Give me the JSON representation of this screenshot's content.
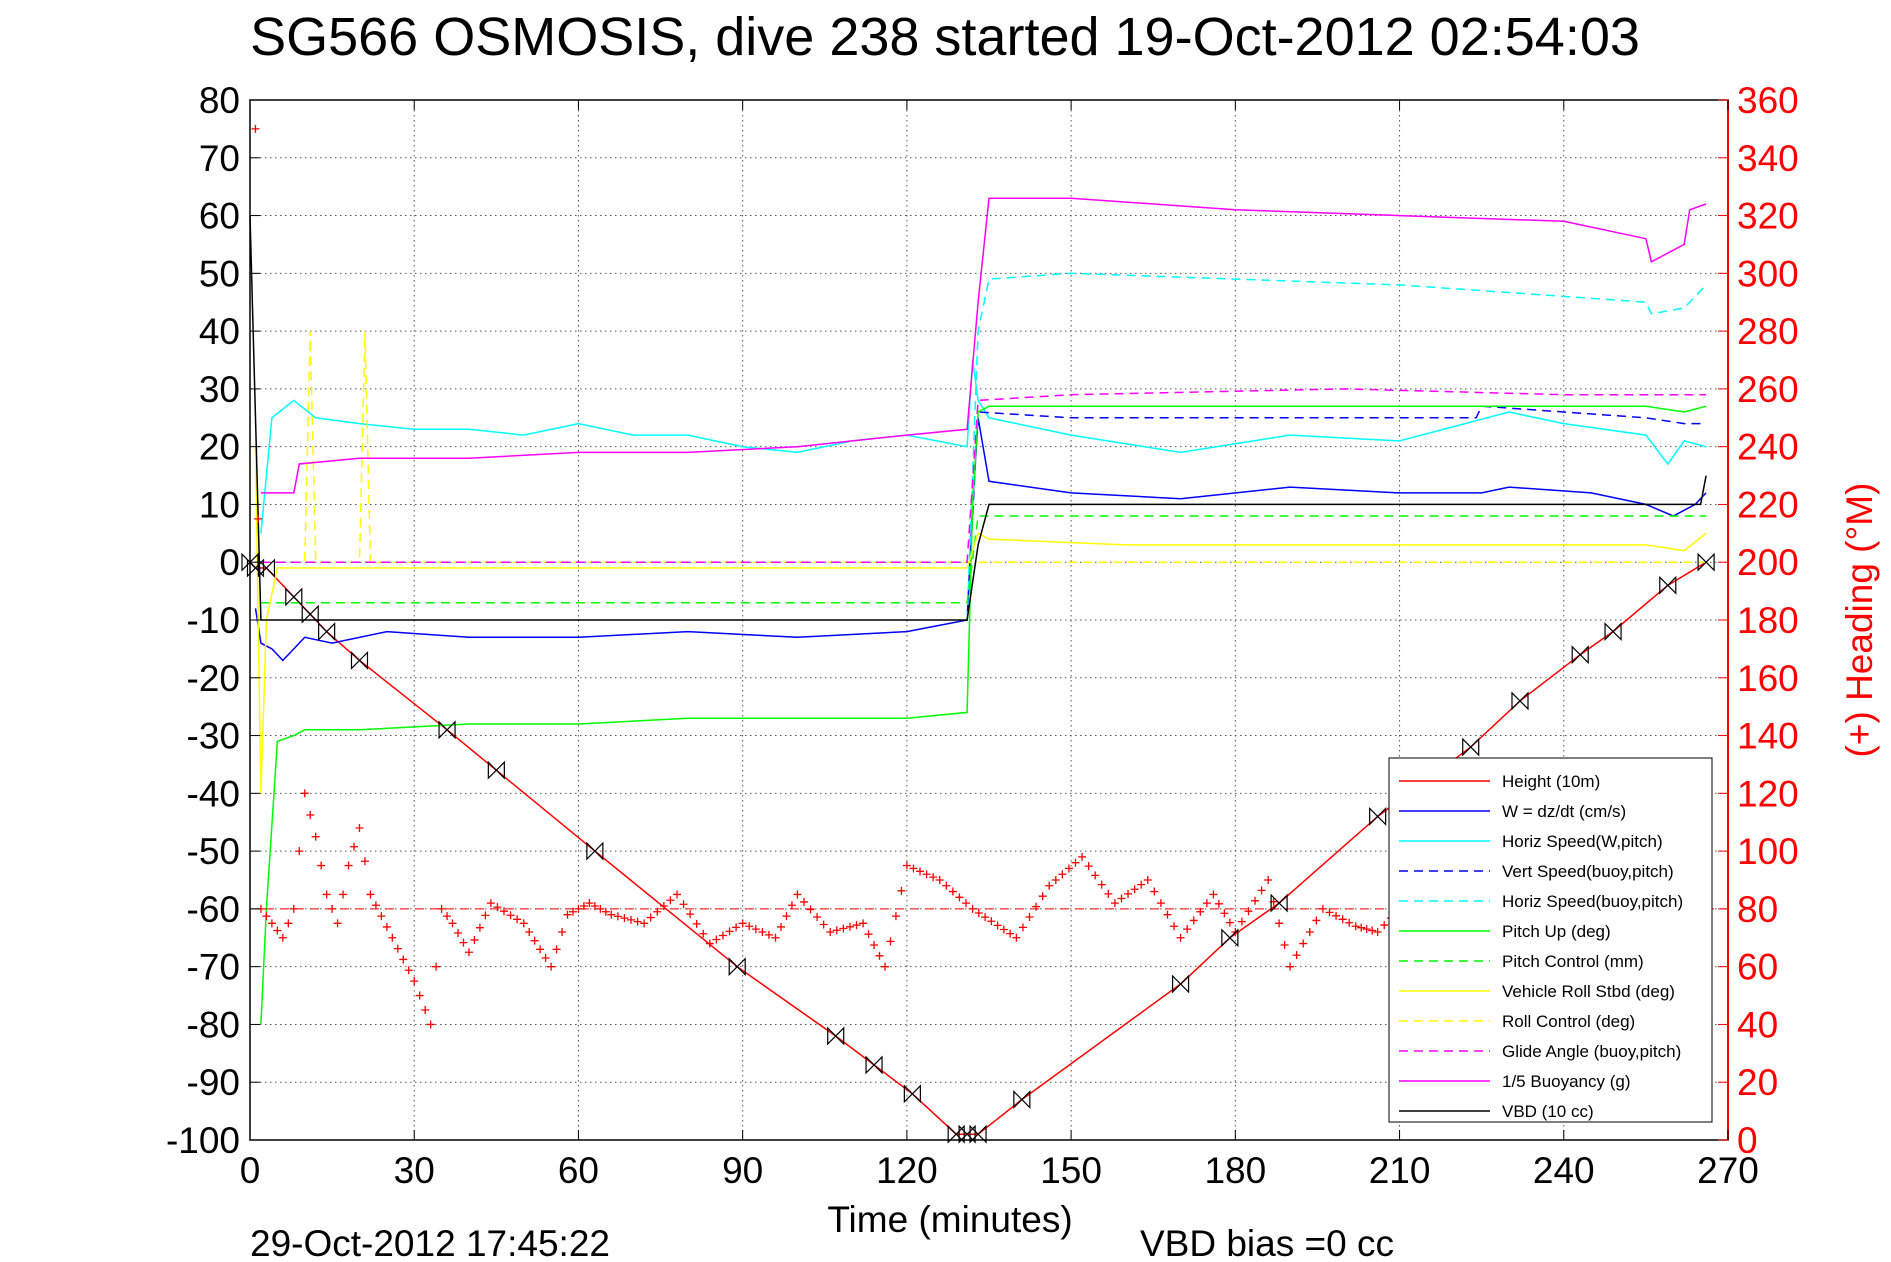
{
  "chart_data": {
    "type": "line",
    "title": "SG566 OSMOSIS, dive 238 started 19-Oct-2012 02:54:03",
    "xlabel": "Time (minutes)",
    "ylabel": "",
    "y2label": "(+) Heading (°M)",
    "xlim": [
      0,
      270
    ],
    "ylim": [
      -100,
      80
    ],
    "y2lim": [
      0,
      360
    ],
    "grid": true,
    "legend_position": "bottom-right",
    "x_ticks": [
      "0",
      "30",
      "60",
      "90",
      "120",
      "150",
      "180",
      "210",
      "240",
      "270"
    ],
    "y_ticks": [
      "80",
      "70",
      "60",
      "50",
      "40",
      "30",
      "20",
      "10",
      "0",
      "-10",
      "-20",
      "-30",
      "-40",
      "-50",
      "-60",
      "-70",
      "-80",
      "-90",
      "-100"
    ],
    "y2_ticks": [
      "360",
      "340",
      "320",
      "300",
      "280",
      "260",
      "240",
      "220",
      "200",
      "180",
      "160",
      "140",
      "120",
      "100",
      "80",
      "60",
      "40",
      "20",
      "0"
    ],
    "footer_date": "29-Oct-2012 17:45:22",
    "footer_vbd": "VBD bias =0 cc",
    "colors": {
      "height": "#ff0000",
      "w": "#0000ff",
      "horiz_speed": "#00ffff",
      "vert_speed_buoy": "#0000ff",
      "horiz_speed_buoy": "#00ffff",
      "pitch": "#00ff00",
      "pitch_control": "#00ff00",
      "roll": "#ffff00",
      "roll_control": "#ffff00",
      "glide_angle": "#ff00ff",
      "buoyancy": "#ff00ff",
      "vbd": "#000000",
      "heading": "#ff0000",
      "grid": "#555555"
    },
    "series": [
      {
        "id": "height",
        "name": "Height (10m)",
        "style": "solid",
        "color": "#ff0000",
        "marker": "bowtie",
        "x": [
          0,
          1,
          3,
          8,
          11,
          14,
          20,
          36,
          45,
          63,
          89,
          107,
          114,
          121,
          129,
          131,
          133,
          141,
          170,
          179,
          188,
          206,
          223,
          232,
          243,
          249,
          259,
          266
        ],
        "y": [
          0,
          -1,
          -1,
          -6,
          -9,
          -12,
          -17,
          -29,
          -36,
          -50,
          -70,
          -82,
          -87,
          -92,
          -99,
          -99,
          -99,
          -93,
          -73,
          -65,
          -59,
          -44,
          -32,
          -24,
          -16,
          -12,
          -4,
          0
        ]
      },
      {
        "id": "w",
        "name": "W = dz/dt (cm/s)",
        "style": "solid",
        "color": "#0000ff",
        "x": [
          1,
          2,
          4,
          6,
          8,
          10,
          15,
          25,
          40,
          60,
          80,
          100,
          120,
          131,
          132,
          133,
          135,
          150,
          170,
          190,
          210,
          225,
          230,
          245,
          255,
          260,
          264,
          266
        ],
        "y": [
          -8,
          -14,
          -15,
          -17,
          -15,
          -13,
          -14,
          -12,
          -13,
          -13,
          -12,
          -13,
          -12,
          -10,
          10,
          25,
          14,
          12,
          11,
          13,
          12,
          12,
          13,
          12,
          10,
          8,
          10,
          12
        ]
      },
      {
        "id": "horiz_speed",
        "name": "Horiz Speed(W,pitch)",
        "style": "solid",
        "color": "#00ffff",
        "x": [
          2,
          4,
          8,
          12,
          20,
          30,
          40,
          50,
          60,
          70,
          80,
          90,
          100,
          110,
          120,
          131,
          132,
          133,
          135,
          150,
          170,
          190,
          210,
          230,
          240,
          255,
          259,
          262,
          266
        ],
        "y": [
          5,
          25,
          28,
          25,
          24,
          23,
          23,
          22,
          24,
          22,
          22,
          20,
          19,
          21,
          22,
          20,
          35,
          28,
          25,
          22,
          19,
          22,
          21,
          26,
          24,
          22,
          17,
          21,
          20
        ]
      },
      {
        "id": "vert_speed_buoy",
        "name": "Vert Speed(buoy,pitch)",
        "style": "dashed",
        "color": "#0000ff",
        "x": [
          131,
          133,
          150,
          200,
          224,
          225,
          240,
          255,
          262,
          265
        ],
        "y": [
          -10,
          26,
          25,
          25,
          25,
          27,
          26,
          25,
          24,
          24
        ]
      },
      {
        "id": "horiz_speed_buoy",
        "name": "Horiz Speed(buoy,pitch)",
        "style": "dashed",
        "color": "#00ffff",
        "x": [
          131,
          133,
          135,
          150,
          180,
          210,
          240,
          255,
          256,
          262,
          266
        ],
        "y": [
          -10,
          40,
          49,
          50,
          49,
          48,
          46,
          45,
          43,
          44,
          48
        ]
      },
      {
        "id": "pitch",
        "name": "Pitch Up (deg)",
        "style": "solid",
        "color": "#00ff00",
        "x": [
          2,
          3,
          5,
          8,
          10,
          20,
          40,
          60,
          80,
          100,
          120,
          131,
          132,
          133,
          135,
          150,
          180,
          210,
          240,
          255,
          262,
          266
        ],
        "y": [
          -80,
          -60,
          -31,
          -30,
          -29,
          -29,
          -28,
          -28,
          -27,
          -27,
          -27,
          -26,
          10,
          26,
          27,
          27,
          27,
          27,
          27,
          27,
          26,
          27
        ]
      },
      {
        "id": "pitch_control",
        "name": "Pitch Control (mm)",
        "style": "dashed",
        "color": "#00ff00",
        "x": [
          2,
          5,
          131,
          133,
          266
        ],
        "y": [
          -7,
          -7,
          -7,
          8,
          8
        ]
      },
      {
        "id": "roll",
        "name": "Vehicle Roll Stbd (deg)",
        "style": "solid",
        "color": "#ffff00",
        "x": [
          1,
          2,
          3,
          5,
          10,
          30,
          60,
          90,
          120,
          131,
          133,
          135,
          160,
          190,
          220,
          255,
          262,
          266
        ],
        "y": [
          20,
          -40,
          -10,
          -1,
          -1,
          -1,
          -1,
          -1,
          -1,
          -1,
          5,
          4,
          3,
          3,
          3,
          3,
          2,
          5
        ]
      },
      {
        "id": "roll_control",
        "name": "Roll Control (deg)",
        "style": "dashed",
        "color": "#ffff00",
        "x": [
          2,
          10,
          11,
          12,
          20,
          21,
          22,
          60,
          120,
          131,
          133,
          266
        ],
        "y": [
          0,
          0,
          40,
          0,
          0,
          40,
          0,
          0,
          0,
          0,
          0,
          0
        ]
      },
      {
        "id": "glide_angle",
        "name": "Glide Angle (buoy,pitch)",
        "style": "dashed",
        "color": "#ff00ff",
        "x": [
          2,
          131,
          133,
          150,
          200,
          240,
          266
        ],
        "y": [
          0,
          0,
          28,
          29,
          30,
          29,
          29
        ]
      },
      {
        "id": "buoyancy",
        "name": "1/5 Buoyancy (g)",
        "style": "solid",
        "color": "#ff00ff",
        "x": [
          2,
          8,
          9,
          20,
          40,
          60,
          80,
          100,
          120,
          131,
          133,
          135,
          150,
          180,
          210,
          240,
          255,
          256,
          262,
          263,
          266
        ],
        "y": [
          12,
          12,
          17,
          18,
          18,
          19,
          19,
          20,
          22,
          23,
          45,
          63,
          63,
          61,
          60,
          59,
          56,
          52,
          55,
          61,
          62
        ]
      },
      {
        "id": "vbd",
        "name": "VBD (10 cc)",
        "style": "solid",
        "color": "#000000",
        "x": [
          0,
          1,
          2,
          3,
          131,
          133,
          135,
          265,
          266
        ],
        "y": [
          60,
          25,
          -10,
          -10,
          -10,
          3,
          10,
          10,
          15
        ]
      }
    ],
    "heading": {
      "name": "Heading",
      "style": "plus",
      "color": "#ff0000",
      "mean": 80,
      "x": [
        1,
        2,
        4,
        6,
        8,
        10,
        12,
        14,
        16,
        18,
        20,
        22,
        26,
        30,
        33,
        35,
        37,
        40,
        44,
        50,
        55,
        58,
        62,
        66,
        72,
        78,
        84,
        90,
        96,
        100,
        106,
        112,
        116,
        120,
        126,
        132,
        140,
        146,
        152,
        158,
        164,
        170,
        176,
        180,
        186,
        190,
        196,
        202,
        206,
        212,
        218,
        226,
        234,
        242,
        250,
        258,
        264
      ],
      "y": [
        350,
        80,
        75,
        70,
        80,
        120,
        105,
        85,
        75,
        95,
        108,
        85,
        70,
        55,
        40,
        80,
        75,
        65,
        82,
        75,
        60,
        78,
        82,
        78,
        75,
        85,
        68,
        75,
        70,
        85,
        72,
        75,
        60,
        95,
        90,
        80,
        70,
        88,
        98,
        82,
        90,
        70,
        85,
        72,
        90,
        60,
        80,
        74,
        72,
        84,
        66,
        70,
        78,
        82,
        76,
        82,
        75
      ]
    }
  }
}
